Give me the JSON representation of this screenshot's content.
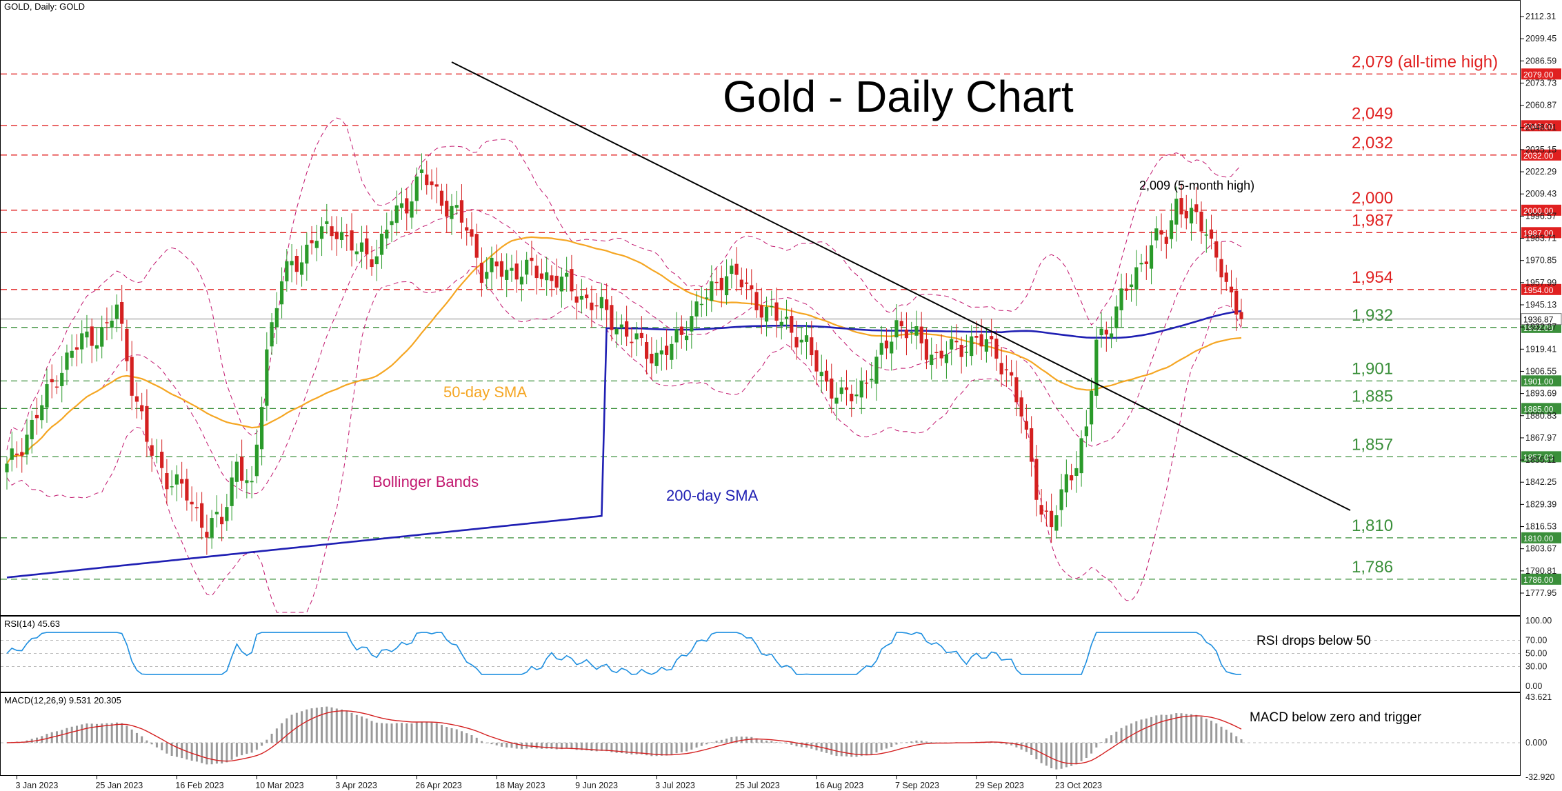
{
  "header": {
    "symbol_label": "GOLD, Daily:  GOLD",
    "title": "Gold - Daily Chart"
  },
  "colors": {
    "bull": "#2a9a2a",
    "bear": "#d42020",
    "sma50": "#f5a623",
    "sma200": "#1f1fb3",
    "bollinger": "#c2186f",
    "resistance": "#e02020",
    "support": "#3a8f3a",
    "rsi": "#1e8fe0",
    "macd_signal": "#d42020",
    "macd_hist": "#9a9a9a",
    "trendline": "#000000"
  },
  "annotations": {
    "five_month_high": "2,009 (5-month high)",
    "sma50": "50-day SMA",
    "sma200": "200-day SMA",
    "bollinger": "Bollinger Bands",
    "rsi_note": "RSI drops below 50",
    "macd_note": "MACD below zero and trigger"
  },
  "levels": [
    {
      "label": "2,079 (all-time high)",
      "price": 2079.0,
      "tag": "2079.00",
      "kind": "resistance"
    },
    {
      "label": "2,049",
      "price": 2049.0,
      "tag": "2049.00",
      "kind": "resistance"
    },
    {
      "label": "2,032",
      "price": 2032.0,
      "tag": "2032.00",
      "kind": "resistance"
    },
    {
      "label": "2,000",
      "price": 2000.0,
      "tag": "2000.00",
      "kind": "resistance"
    },
    {
      "label": "1,987",
      "price": 1987.0,
      "tag": "1987.00",
      "kind": "resistance"
    },
    {
      "label": "1,954",
      "price": 1954.0,
      "tag": "1954.00",
      "kind": "resistance"
    },
    {
      "label": "1,932",
      "price": 1932.0,
      "tag": "1932.00",
      "kind": "support"
    },
    {
      "label": "1,901",
      "price": 1901.0,
      "tag": "1901.00",
      "kind": "support"
    },
    {
      "label": "1,885",
      "price": 1885.0,
      "tag": "1885.00",
      "kind": "support"
    },
    {
      "label": "1,857",
      "price": 1857.0,
      "tag": "1857.00",
      "kind": "support"
    },
    {
      "label": "1,810",
      "price": 1810.0,
      "tag": "1810.00",
      "kind": "support"
    },
    {
      "label": "1,786",
      "price": 1786.0,
      "tag": "1786.00",
      "kind": "support"
    }
  ],
  "current_price": {
    "value": 1936.87,
    "tag": "1936.87"
  },
  "rsi_panel": {
    "label": "RSI(14) 45.63",
    "ticks": [
      "100.00",
      "70.00",
      "50.00",
      "30.00",
      "0.00"
    ]
  },
  "macd_panel": {
    "label": "MACD(12,26,9) 9.531 20.305",
    "ticks": [
      "43.621",
      "0.000",
      "-32.920"
    ]
  },
  "chart_data": {
    "type": "candlestick",
    "symbol": "GOLD",
    "timeframe": "Daily",
    "ylim": [
      1770,
      2115
    ],
    "y_ticks": [
      "2112.31",
      "2099.45",
      "2086.59",
      "2073.73",
      "2060.87",
      "2048.01",
      "2035.15",
      "2022.29",
      "2009.43",
      "1996.57",
      "1983.71",
      "1970.85",
      "1957.99",
      "1945.13",
      "1932.27",
      "1919.41",
      "1906.55",
      "1893.69",
      "1880.83",
      "1867.97",
      "1855.11",
      "1842.25",
      "1829.39",
      "1816.53",
      "1803.67",
      "1790.81",
      "1777.95"
    ],
    "x_tick_labels": [
      "3 Jan 2023",
      "25 Jan 2023",
      "16 Feb 2023",
      "10 Mar 2023",
      "3 Apr 2023",
      "26 Apr 2023",
      "18 May 2023",
      "9 Jun 2023",
      "3 Jul 2023",
      "25 Jul 2023",
      "16 Aug 2023",
      "7 Sep 2023",
      "29 Sep 2023",
      "23 Oct 2023"
    ],
    "close_anchors": [
      [
        0,
        1850
      ],
      [
        5,
        1875
      ],
      [
        10,
        1905
      ],
      [
        15,
        1925
      ],
      [
        20,
        1930
      ],
      [
        22,
        1945
      ],
      [
        25,
        1900
      ],
      [
        28,
        1865
      ],
      [
        32,
        1845
      ],
      [
        36,
        1835
      ],
      [
        40,
        1815
      ],
      [
        43,
        1820
      ],
      [
        46,
        1855
      ],
      [
        49,
        1835
      ],
      [
        52,
        1920
      ],
      [
        55,
        1960
      ],
      [
        58,
        1970
      ],
      [
        62,
        1985
      ],
      [
        66,
        1990
      ],
      [
        70,
        1975
      ],
      [
        74,
        1975
      ],
      [
        77,
        1995
      ],
      [
        80,
        2005
      ],
      [
        83,
        2020
      ],
      [
        86,
        2010
      ],
      [
        89,
        2000
      ],
      [
        92,
        1990
      ],
      [
        95,
        1965
      ],
      [
        100,
        1965
      ],
      [
        105,
        1965
      ],
      [
        110,
        1960
      ],
      [
        115,
        1950
      ],
      [
        120,
        1940
      ],
      [
        125,
        1925
      ],
      [
        130,
        1915
      ],
      [
        133,
        1920
      ],
      [
        136,
        1935
      ],
      [
        140,
        1950
      ],
      [
        144,
        1965
      ],
      [
        148,
        1955
      ],
      [
        152,
        1940
      ],
      [
        156,
        1935
      ],
      [
        160,
        1920
      ],
      [
        164,
        1900
      ],
      [
        167,
        1890
      ],
      [
        170,
        1895
      ],
      [
        174,
        1910
      ],
      [
        178,
        1935
      ],
      [
        182,
        1925
      ],
      [
        186,
        1915
      ],
      [
        190,
        1920
      ],
      [
        194,
        1925
      ],
      [
        198,
        1918
      ],
      [
        201,
        1900
      ],
      [
        203,
        1880
      ],
      [
        205,
        1855
      ],
      [
        207,
        1825
      ],
      [
        209,
        1815
      ],
      [
        212,
        1845
      ],
      [
        214,
        1855
      ],
      [
        216,
        1870
      ],
      [
        218,
        1925
      ],
      [
        221,
        1935
      ],
      [
        225,
        1960
      ],
      [
        229,
        1980
      ],
      [
        232,
        1985
      ],
      [
        234,
        2005
      ],
      [
        237,
        1995
      ],
      [
        240,
        1990
      ],
      [
        243,
        1965
      ],
      [
        245,
        1945
      ],
      [
        247,
        1937
      ]
    ],
    "x_count": 248
  }
}
